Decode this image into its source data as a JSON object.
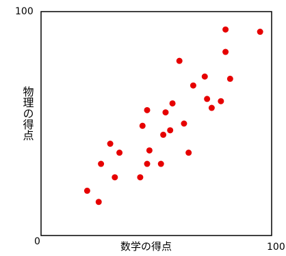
{
  "chart_data": {
    "type": "scatter",
    "xlabel": "数学の得点",
    "ylabel": "物理の得点",
    "xlim": [
      0,
      100
    ],
    "ylim": [
      0,
      100
    ],
    "tick_labels": {
      "y_max": "100",
      "origin": "0",
      "x_max": "100"
    },
    "grid": false,
    "legend": "none",
    "point_color": "#e60000",
    "points": [
      {
        "x": 20,
        "y": 20
      },
      {
        "x": 25,
        "y": 15
      },
      {
        "x": 26,
        "y": 32
      },
      {
        "x": 30,
        "y": 41
      },
      {
        "x": 32,
        "y": 26
      },
      {
        "x": 34,
        "y": 37
      },
      {
        "x": 43,
        "y": 26
      },
      {
        "x": 44,
        "y": 49
      },
      {
        "x": 46,
        "y": 56
      },
      {
        "x": 46,
        "y": 32
      },
      {
        "x": 47,
        "y": 38
      },
      {
        "x": 52,
        "y": 32
      },
      {
        "x": 53,
        "y": 45
      },
      {
        "x": 54,
        "y": 55
      },
      {
        "x": 56,
        "y": 47
      },
      {
        "x": 57,
        "y": 59
      },
      {
        "x": 60,
        "y": 78
      },
      {
        "x": 62,
        "y": 50
      },
      {
        "x": 64,
        "y": 37
      },
      {
        "x": 66,
        "y": 67
      },
      {
        "x": 71,
        "y": 71
      },
      {
        "x": 72,
        "y": 61
      },
      {
        "x": 74,
        "y": 57
      },
      {
        "x": 78,
        "y": 60
      },
      {
        "x": 80,
        "y": 92
      },
      {
        "x": 80,
        "y": 82
      },
      {
        "x": 82,
        "y": 70
      },
      {
        "x": 95,
        "y": 91
      }
    ]
  }
}
